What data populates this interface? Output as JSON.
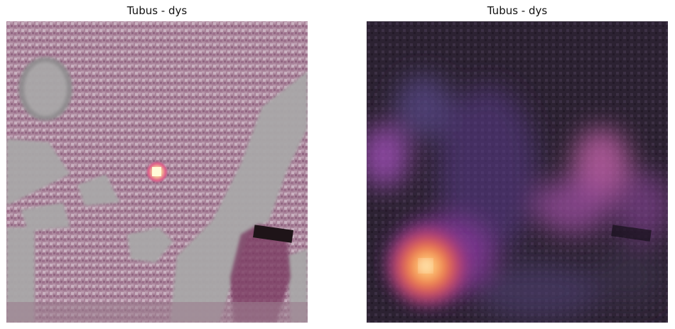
{
  "figure": {
    "panels": [
      {
        "title": "Tubus - dys",
        "content": "histology image with single-point saliency overlay",
        "colormap": "magma"
      },
      {
        "title": "Tubus - dys",
        "content": "histology image with smooth heatmap overlay",
        "colormap": "magma"
      }
    ]
  }
}
